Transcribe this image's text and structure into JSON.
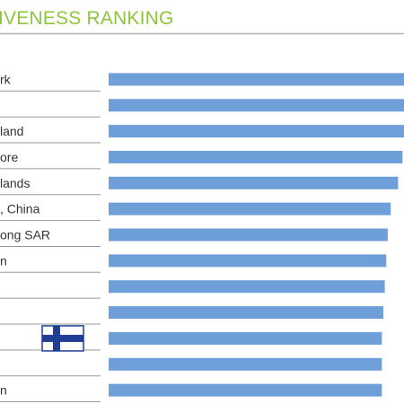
{
  "chart_data": {
    "type": "bar",
    "orientation": "horizontal",
    "title": "IVENESS RANKING",
    "categories": [
      "rk",
      "",
      "land",
      "ore",
      "lands",
      ", China",
      "ong SAR",
      "n",
      "",
      "",
      "",
      "",
      "n"
    ],
    "values": [
      100,
      100,
      100,
      99.5,
      98,
      95.5,
      94.5,
      94,
      93.5,
      93,
      92.5,
      92.5,
      92.5
    ],
    "xlim": [
      0,
      100
    ],
    "grid": false,
    "legend": "none",
    "colors": {
      "bar": "#6f9fd8",
      "title": "#8cc63f",
      "rule": "#999999",
      "flag_blue": "#1f3f94"
    },
    "flag_row": 10,
    "flag_icon": "finland-flag-icon"
  }
}
